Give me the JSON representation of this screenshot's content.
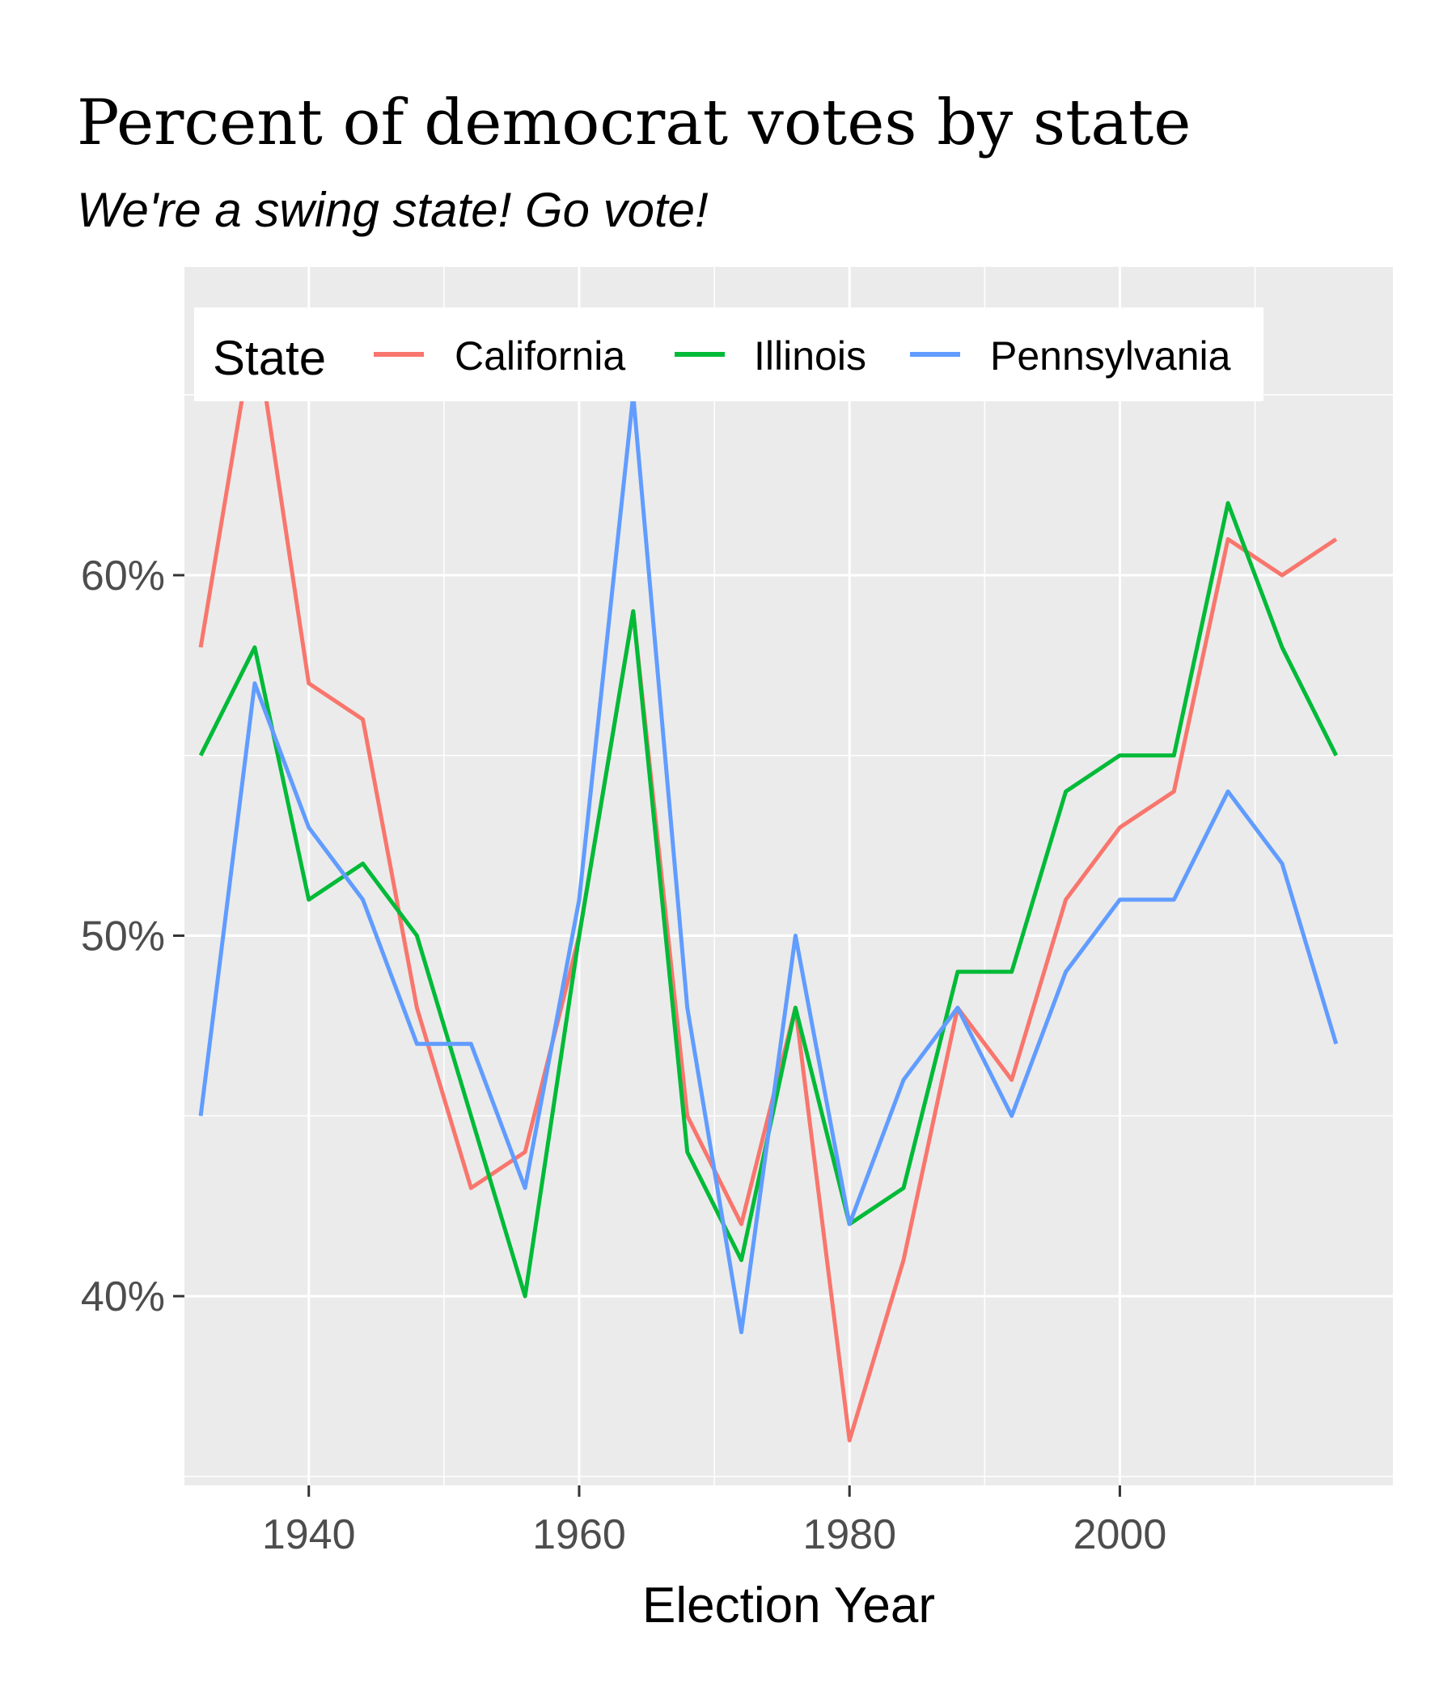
{
  "chart_data": {
    "type": "line",
    "title": "Percent of democrat votes by state",
    "subtitle": "We're a swing state! Go vote!",
    "xlabel": "Election Year",
    "ylabel": "",
    "x_ticks": [
      1940,
      1960,
      1980,
      2000
    ],
    "y_ticks": [
      0.4,
      0.5,
      0.6
    ],
    "y_tick_labels": [
      "40%",
      "50%",
      "60%"
    ],
    "x_tick_labels": [
      "1940",
      "1960",
      "1980",
      "2000"
    ],
    "xlim": [
      1930.8,
      2020.2
    ],
    "ylim": [
      0.3475,
      0.6855
    ],
    "grid": true,
    "legend": {
      "title": "State",
      "placement": "top-left, inside"
    },
    "x": [
      1932,
      1936,
      1940,
      1944,
      1948,
      1952,
      1956,
      1960,
      1964,
      1968,
      1972,
      1976,
      1980,
      1984,
      1988,
      1992,
      1996,
      2000,
      2004,
      2008,
      2012,
      2016
    ],
    "series": [
      {
        "name": "California",
        "color": "#F8766D",
        "values": [
          0.58,
          0.67,
          0.57,
          0.56,
          0.48,
          0.43,
          0.44,
          0.5,
          0.59,
          0.45,
          0.42,
          0.48,
          0.36,
          0.41,
          0.48,
          0.46,
          0.51,
          0.53,
          0.54,
          0.61,
          0.6,
          0.61
        ]
      },
      {
        "name": "Illinois",
        "color": "#00BA38",
        "values": [
          0.55,
          0.58,
          0.51,
          0.52,
          0.5,
          0.45,
          0.4,
          0.5,
          0.59,
          0.44,
          0.41,
          0.48,
          0.42,
          0.43,
          0.49,
          0.49,
          0.54,
          0.55,
          0.55,
          0.62,
          0.58,
          0.55
        ]
      },
      {
        "name": "Pennsylvania",
        "color": "#619CFF",
        "values": [
          0.45,
          0.57,
          0.53,
          0.51,
          0.47,
          0.47,
          0.43,
          0.51,
          0.65,
          0.48,
          0.39,
          0.5,
          0.42,
          0.46,
          0.48,
          0.45,
          0.49,
          0.51,
          0.51,
          0.54,
          0.52,
          0.47
        ]
      }
    ]
  }
}
